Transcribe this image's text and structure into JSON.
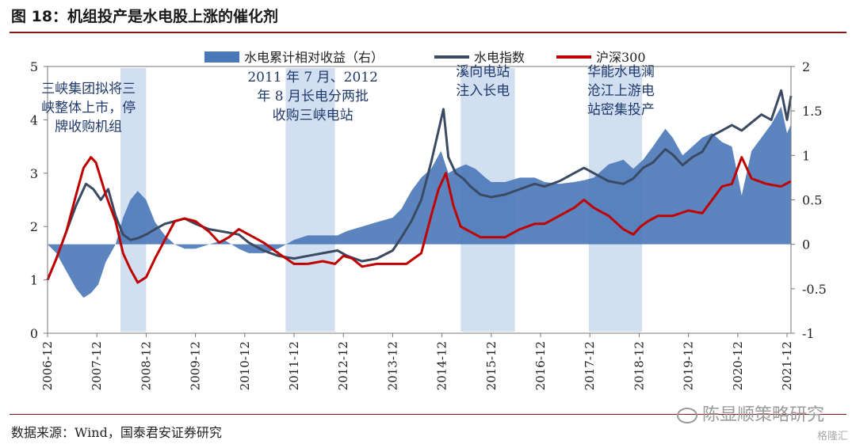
{
  "page": {
    "title": "图 18：机组投产是水电股上涨的催化剂",
    "source": "数据来源：Wind，国泰君安证券研究",
    "watermark": "陈显顺策略研究",
    "watermark2": "格隆汇"
  },
  "colors": {
    "area": "#4a78b8",
    "hydro_line": "#3b4a63",
    "csi300_line": "#c00000",
    "shade": "#c9d9ee",
    "title_rule": "#8a1a1a"
  },
  "chart_data": {
    "type": "line",
    "y_left": {
      "min": 0,
      "max": 5,
      "ticks": [
        "0",
        "1",
        "2",
        "3",
        "4",
        "5"
      ]
    },
    "y_right": {
      "min": -1,
      "max": 2,
      "ticks": [
        "-1",
        "-0.5",
        "0",
        "0.5",
        "1",
        "1.5",
        "2"
      ]
    },
    "x_range": [
      2006.92,
      2022.0
    ],
    "x_ticks": [
      "2006-12",
      "2007-12",
      "2008-12",
      "2009-12",
      "2010-12",
      "2011-12",
      "2012-12",
      "2013-12",
      "2014-12",
      "2015-12",
      "2016-12",
      "2017-12",
      "2018-12",
      "2019-12",
      "2020-12",
      "2021-12"
    ],
    "legend": [
      "水电累计相对收益（右）",
      "水电指数",
      "沪深300"
    ],
    "shaded_periods": [
      [
        2008.4,
        2008.92
      ],
      [
        2011.75,
        2012.75
      ],
      [
        2015.3,
        2016.4
      ],
      [
        2017.9,
        2018.98
      ]
    ],
    "annotations": [
      {
        "lines": [
          "三峡集团拟将三",
          "峡整体上市，停",
          "牌收购机组"
        ],
        "x": 2007.75,
        "y": 4.5
      },
      {
        "lines": [
          "2011 年 7 月、2012",
          "年 8 月长电分两批",
          "收购三峡电站"
        ],
        "x": 2012.3,
        "y": 4.72
      },
      {
        "lines": [
          "溪向电站",
          "注入长电"
        ],
        "x": 2015.75,
        "y": 4.82
      },
      {
        "lines": [
          "华能水电澜",
          "沧江上游电",
          "站密集投产"
        ],
        "x": 2018.55,
        "y": 4.82
      }
    ],
    "series": [
      {
        "name": "水电指数",
        "axis": "left",
        "points": [
          [
            2006.92,
            1.0
          ],
          [
            2007.1,
            1.4
          ],
          [
            2007.3,
            1.9
          ],
          [
            2007.5,
            2.4
          ],
          [
            2007.7,
            2.8
          ],
          [
            2007.85,
            2.7
          ],
          [
            2008.0,
            2.5
          ],
          [
            2008.15,
            2.7
          ],
          [
            2008.3,
            2.2
          ],
          [
            2008.45,
            1.85
          ],
          [
            2008.6,
            1.75
          ],
          [
            2008.75,
            1.78
          ],
          [
            2008.92,
            1.85
          ],
          [
            2009.1,
            1.95
          ],
          [
            2009.3,
            2.05
          ],
          [
            2009.5,
            2.1
          ],
          [
            2009.7,
            2.15
          ],
          [
            2009.92,
            2.05
          ],
          [
            2010.2,
            1.95
          ],
          [
            2010.5,
            1.9
          ],
          [
            2010.8,
            1.85
          ],
          [
            2011.0,
            1.7
          ],
          [
            2011.3,
            1.55
          ],
          [
            2011.6,
            1.45
          ],
          [
            2011.92,
            1.4
          ],
          [
            2012.2,
            1.45
          ],
          [
            2012.5,
            1.5
          ],
          [
            2012.8,
            1.55
          ],
          [
            2013.0,
            1.45
          ],
          [
            2013.3,
            1.35
          ],
          [
            2013.6,
            1.4
          ],
          [
            2013.92,
            1.55
          ],
          [
            2014.1,
            1.8
          ],
          [
            2014.3,
            2.1
          ],
          [
            2014.5,
            2.5
          ],
          [
            2014.7,
            3.2
          ],
          [
            2014.85,
            3.8
          ],
          [
            2014.95,
            4.2
          ],
          [
            2015.05,
            3.3
          ],
          [
            2015.2,
            3.0
          ],
          [
            2015.35,
            2.9
          ],
          [
            2015.5,
            2.75
          ],
          [
            2015.7,
            2.6
          ],
          [
            2015.92,
            2.55
          ],
          [
            2016.2,
            2.6
          ],
          [
            2016.5,
            2.7
          ],
          [
            2016.8,
            2.8
          ],
          [
            2017.0,
            2.75
          ],
          [
            2017.3,
            2.85
          ],
          [
            2017.6,
            3.0
          ],
          [
            2017.8,
            3.1
          ],
          [
            2018.0,
            3.0
          ],
          [
            2018.3,
            2.85
          ],
          [
            2018.6,
            2.8
          ],
          [
            2018.8,
            2.9
          ],
          [
            2019.0,
            3.1
          ],
          [
            2019.2,
            3.2
          ],
          [
            2019.45,
            3.45
          ],
          [
            2019.6,
            3.35
          ],
          [
            2019.8,
            3.15
          ],
          [
            2020.0,
            3.3
          ],
          [
            2020.2,
            3.4
          ],
          [
            2020.4,
            3.7
          ],
          [
            2020.6,
            3.8
          ],
          [
            2020.8,
            3.9
          ],
          [
            2021.0,
            3.8
          ],
          [
            2021.2,
            3.95
          ],
          [
            2021.4,
            4.1
          ],
          [
            2021.6,
            4.0
          ],
          [
            2021.8,
            4.55
          ],
          [
            2021.92,
            4.0
          ],
          [
            2022.0,
            4.45
          ]
        ]
      },
      {
        "name": "沪深300",
        "axis": "left",
        "points": [
          [
            2006.92,
            1.0
          ],
          [
            2007.1,
            1.4
          ],
          [
            2007.3,
            1.9
          ],
          [
            2007.5,
            2.6
          ],
          [
            2007.65,
            3.1
          ],
          [
            2007.8,
            3.3
          ],
          [
            2007.9,
            3.2
          ],
          [
            2008.1,
            2.6
          ],
          [
            2008.3,
            2.1
          ],
          [
            2008.45,
            1.5
          ],
          [
            2008.6,
            1.2
          ],
          [
            2008.75,
            0.95
          ],
          [
            2008.92,
            1.05
          ],
          [
            2009.1,
            1.4
          ],
          [
            2009.3,
            1.75
          ],
          [
            2009.5,
            2.1
          ],
          [
            2009.7,
            2.15
          ],
          [
            2009.92,
            2.1
          ],
          [
            2010.2,
            1.9
          ],
          [
            2010.4,
            1.7
          ],
          [
            2010.6,
            1.8
          ],
          [
            2010.8,
            1.95
          ],
          [
            2011.0,
            1.85
          ],
          [
            2011.3,
            1.7
          ],
          [
            2011.6,
            1.5
          ],
          [
            2011.92,
            1.3
          ],
          [
            2012.2,
            1.3
          ],
          [
            2012.5,
            1.35
          ],
          [
            2012.75,
            1.3
          ],
          [
            2012.92,
            1.45
          ],
          [
            2013.1,
            1.4
          ],
          [
            2013.3,
            1.25
          ],
          [
            2013.6,
            1.3
          ],
          [
            2013.92,
            1.3
          ],
          [
            2014.2,
            1.3
          ],
          [
            2014.5,
            1.5
          ],
          [
            2014.7,
            2.2
          ],
          [
            2014.85,
            2.7
          ],
          [
            2015.0,
            3.0
          ],
          [
            2015.15,
            2.4
          ],
          [
            2015.3,
            2.0
          ],
          [
            2015.5,
            1.9
          ],
          [
            2015.7,
            1.8
          ],
          [
            2015.92,
            1.8
          ],
          [
            2016.2,
            1.8
          ],
          [
            2016.5,
            1.95
          ],
          [
            2016.8,
            2.05
          ],
          [
            2017.0,
            2.05
          ],
          [
            2017.3,
            2.2
          ],
          [
            2017.6,
            2.35
          ],
          [
            2017.8,
            2.5
          ],
          [
            2018.0,
            2.35
          ],
          [
            2018.3,
            2.2
          ],
          [
            2018.6,
            1.95
          ],
          [
            2018.8,
            1.85
          ],
          [
            2018.95,
            2.0
          ],
          [
            2019.1,
            2.1
          ],
          [
            2019.3,
            2.2
          ],
          [
            2019.6,
            2.2
          ],
          [
            2019.92,
            2.3
          ],
          [
            2020.2,
            2.25
          ],
          [
            2020.4,
            2.5
          ],
          [
            2020.6,
            2.75
          ],
          [
            2020.8,
            2.8
          ],
          [
            2021.0,
            3.3
          ],
          [
            2021.2,
            2.9
          ],
          [
            2021.5,
            2.8
          ],
          [
            2021.8,
            2.75
          ],
          [
            2022.0,
            2.85
          ]
        ]
      },
      {
        "name": "水电累计相对收益（右）",
        "axis": "right",
        "type": "area",
        "points": [
          [
            2006.92,
            0.0
          ],
          [
            2007.1,
            -0.1
          ],
          [
            2007.3,
            -0.3
          ],
          [
            2007.5,
            -0.5
          ],
          [
            2007.65,
            -0.6
          ],
          [
            2007.8,
            -0.55
          ],
          [
            2007.95,
            -0.45
          ],
          [
            2008.1,
            -0.2
          ],
          [
            2008.3,
            0.0
          ],
          [
            2008.45,
            0.3
          ],
          [
            2008.6,
            0.5
          ],
          [
            2008.75,
            0.6
          ],
          [
            2008.92,
            0.5
          ],
          [
            2009.1,
            0.25
          ],
          [
            2009.3,
            0.1
          ],
          [
            2009.5,
            0.0
          ],
          [
            2009.7,
            -0.05
          ],
          [
            2009.92,
            -0.05
          ],
          [
            2010.2,
            0.0
          ],
          [
            2010.5,
            0.05
          ],
          [
            2010.8,
            -0.05
          ],
          [
            2011.0,
            -0.1
          ],
          [
            2011.3,
            -0.1
          ],
          [
            2011.6,
            -0.05
          ],
          [
            2011.92,
            0.05
          ],
          [
            2012.2,
            0.1
          ],
          [
            2012.5,
            0.1
          ],
          [
            2012.8,
            0.1
          ],
          [
            2013.0,
            0.15
          ],
          [
            2013.3,
            0.2
          ],
          [
            2013.6,
            0.25
          ],
          [
            2013.92,
            0.3
          ],
          [
            2014.1,
            0.4
          ],
          [
            2014.3,
            0.6
          ],
          [
            2014.5,
            0.75
          ],
          [
            2014.7,
            0.85
          ],
          [
            2014.9,
            1.05
          ],
          [
            2015.05,
            0.8
          ],
          [
            2015.2,
            0.85
          ],
          [
            2015.4,
            0.9
          ],
          [
            2015.6,
            0.85
          ],
          [
            2015.8,
            0.75
          ],
          [
            2015.92,
            0.7
          ],
          [
            2016.2,
            0.7
          ],
          [
            2016.5,
            0.75
          ],
          [
            2016.8,
            0.75
          ],
          [
            2017.0,
            0.7
          ],
          [
            2017.3,
            0.68
          ],
          [
            2017.6,
            0.7
          ],
          [
            2017.8,
            0.72
          ],
          [
            2018.0,
            0.75
          ],
          [
            2018.3,
            0.9
          ],
          [
            2018.6,
            0.95
          ],
          [
            2018.8,
            0.85
          ],
          [
            2019.0,
            0.95
          ],
          [
            2019.2,
            1.1
          ],
          [
            2019.45,
            1.3
          ],
          [
            2019.6,
            1.2
          ],
          [
            2019.8,
            1.0
          ],
          [
            2020.0,
            1.1
          ],
          [
            2020.2,
            1.2
          ],
          [
            2020.4,
            1.25
          ],
          [
            2020.6,
            1.15
          ],
          [
            2020.8,
            1.1
          ],
          [
            2021.0,
            0.55
          ],
          [
            2021.2,
            1.05
          ],
          [
            2021.4,
            1.2
          ],
          [
            2021.6,
            1.35
          ],
          [
            2021.8,
            1.55
          ],
          [
            2021.92,
            1.25
          ],
          [
            2022.0,
            1.35
          ]
        ]
      }
    ]
  }
}
